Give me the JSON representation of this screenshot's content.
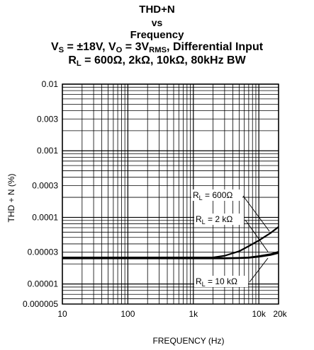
{
  "chart_data": {
    "type": "line",
    "title_lines": [
      {
        "parts": [
          {
            "t": "THD+N"
          }
        ]
      },
      {
        "parts": [
          {
            "t": "vs"
          }
        ]
      },
      {
        "parts": [
          {
            "t": "Frequency"
          }
        ]
      },
      {
        "parts": [
          {
            "t": "V"
          },
          {
            "t": "S",
            "sub": true
          },
          {
            "t": " = ±18V, V"
          },
          {
            "t": "O",
            "sub": true
          },
          {
            "t": " = 3V"
          },
          {
            "t": "RMS",
            "sub": true
          },
          {
            "t": ", Differential Input"
          }
        ]
      },
      {
        "parts": [
          {
            "t": "R"
          },
          {
            "t": "L",
            "sub": true
          },
          {
            "t": " = 600Ω, 2kΩ, 10kΩ, 80kHz BW"
          }
        ]
      }
    ],
    "xlabel": "FREQUENCY (Hz)",
    "ylabel": "THD + N (%)",
    "xscale": "log",
    "yscale": "log",
    "xlim": [
      10,
      20000
    ],
    "ylim": [
      5e-06,
      0.01
    ],
    "grid": true,
    "x_ticks": [
      {
        "value": 10,
        "label": "10"
      },
      {
        "value": 100,
        "label": "100"
      },
      {
        "value": 1000,
        "label": "1k"
      },
      {
        "value": 10000,
        "label": "10k"
      },
      {
        "value": 20000,
        "label": "20k"
      }
    ],
    "y_ticks": [
      {
        "value": 0.01,
        "label": "0.01"
      },
      {
        "value": 0.003,
        "label": "0.003"
      },
      {
        "value": 0.001,
        "label": "0.001"
      },
      {
        "value": 0.0003,
        "label": "0.0003"
      },
      {
        "value": 0.0001,
        "label": "0.0001"
      },
      {
        "value": 3e-05,
        "label": "0.00003"
      },
      {
        "value": 1e-05,
        "label": "0.00001"
      },
      {
        "value": 5e-06,
        "label": "0.000005"
      }
    ],
    "series": [
      {
        "name": "RL = 600Ω",
        "x": [
          10,
          20,
          50,
          100,
          200,
          500,
          1000,
          2000,
          3000,
          5000,
          7000,
          10000,
          15000,
          20000
        ],
        "y": [
          2.5e-05,
          2.5e-05,
          2.5e-05,
          2.5e-05,
          2.5e-05,
          2.5e-05,
          2.5e-05,
          2.5e-05,
          2.65e-05,
          3.1e-05,
          3.7e-05,
          4.5e-05,
          5.8e-05,
          7.2e-05
        ]
      },
      {
        "name": "RL = 2 kΩ",
        "x": [
          10,
          20,
          50,
          100,
          200,
          500,
          1000,
          2000,
          3000,
          5000,
          7000,
          10000,
          15000,
          20000
        ],
        "y": [
          2.45e-05,
          2.45e-05,
          2.45e-05,
          2.45e-05,
          2.45e-05,
          2.45e-05,
          2.45e-05,
          2.45e-05,
          2.45e-05,
          2.47e-05,
          2.5e-05,
          2.62e-05,
          2.8e-05,
          3.05e-05
        ]
      },
      {
        "name": "RL = 10 kΩ",
        "x": [
          10,
          20,
          50,
          100,
          200,
          500,
          1000,
          2000,
          3000,
          5000,
          7000,
          10000,
          15000,
          20000
        ],
        "y": [
          2.42e-05,
          2.42e-05,
          2.42e-05,
          2.42e-05,
          2.42e-05,
          2.42e-05,
          2.42e-05,
          2.42e-05,
          2.42e-05,
          2.44e-05,
          2.47e-05,
          2.56e-05,
          2.72e-05,
          2.92e-05
        ]
      }
    ],
    "annotations": [
      {
        "main": "R",
        "sub": "L",
        "rest": " = 600Ω",
        "series_index": 0
      },
      {
        "main": "R",
        "sub": "L",
        "rest": " = 2 kΩ",
        "series_index": 1
      },
      {
        "main": "R",
        "sub": "L",
        "rest": " = 10 kΩ",
        "series_index": 2
      }
    ]
  }
}
